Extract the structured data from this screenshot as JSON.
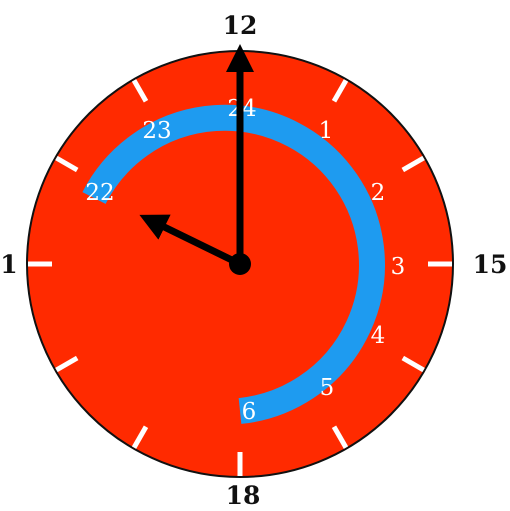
{
  "clock": {
    "colors": {
      "face": "#ff2a00",
      "rim": "#111111",
      "band": "#1e9bf0",
      "ticks": "#ffffff",
      "hands": "#000000",
      "hub": "#000000",
      "band_text": "#ffffff",
      "outer_text": "#111111",
      "background": "#ffffff"
    },
    "outer_labels": {
      "top": "12",
      "right": "15",
      "bottom": "18",
      "left": "1"
    },
    "band_hours": [
      "22",
      "23",
      "24",
      "1",
      "2",
      "3",
      "4",
      "5",
      "6"
    ],
    "hands": {
      "minute_hand": "pointing-up",
      "hour_hand": "pointing-upper-left"
    }
  }
}
